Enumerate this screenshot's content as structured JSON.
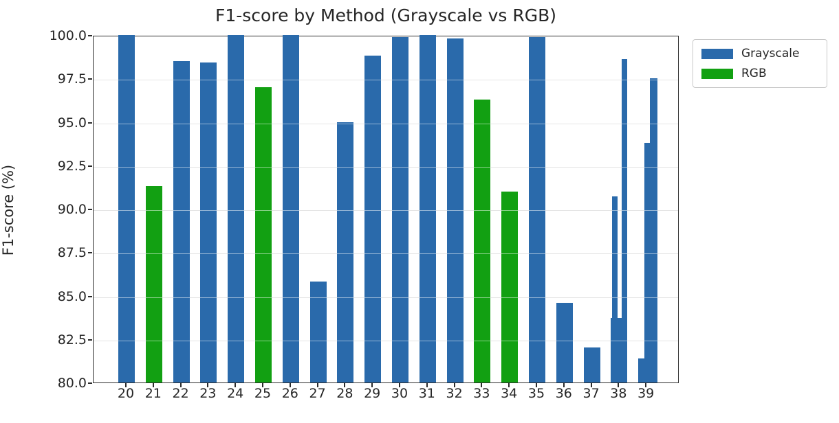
{
  "chart_data": {
    "type": "bar",
    "title": "F1-score by Method (Grayscale vs RGB)",
    "xlabel": "",
    "ylabel": "F1-score (%)",
    "ylim": [
      80.0,
      100.0
    ],
    "yticks": [
      "100.0",
      "97.5",
      "95.0",
      "92.5",
      "90.0",
      "87.5",
      "85.0",
      "82.5",
      "80.0"
    ],
    "grid": true,
    "gridline_values": [
      97.5,
      95.0,
      92.5,
      90.0,
      87.5,
      85.0,
      82.5
    ],
    "legend_position": "outside-top-right",
    "categories": [
      "20",
      "21",
      "22",
      "23",
      "24",
      "25",
      "26",
      "27",
      "28",
      "29",
      "30",
      "31",
      "32",
      "33",
      "34",
      "35",
      "36",
      "37",
      "38",
      "39"
    ],
    "series": [
      {
        "name": "Grayscale",
        "color": "#2a6aab",
        "values": [
          100.0,
          null,
          98.5,
          98.4,
          100.0,
          null,
          100.0,
          85.8,
          95.0,
          98.8,
          99.9,
          100.0,
          99.8,
          null,
          null,
          99.9,
          84.6,
          82.0,
          [
            83.7,
            90.7,
            98.6
          ],
          [
            81.4,
            93.8,
            97.5
          ]
        ]
      },
      {
        "name": "RGB",
        "color": "#12a012",
        "values": [
          null,
          91.3,
          null,
          null,
          null,
          97.0,
          null,
          null,
          null,
          null,
          null,
          null,
          null,
          96.3,
          91.0,
          null,
          null,
          null,
          null,
          null
        ]
      }
    ]
  }
}
